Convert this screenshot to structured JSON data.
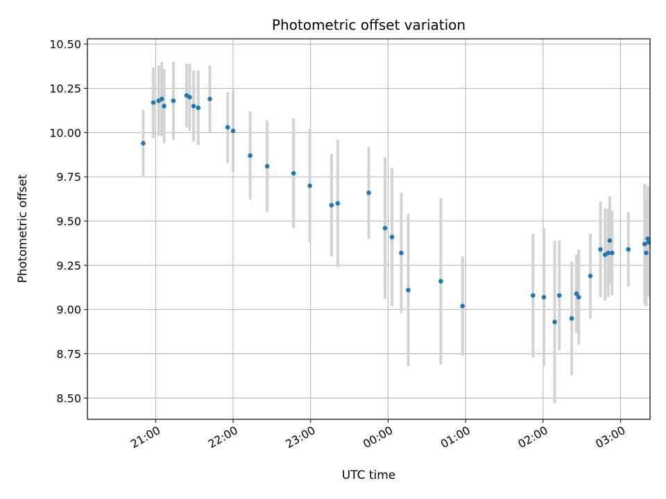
{
  "chart_data": {
    "type": "scatter",
    "title": "Photometric offset variation",
    "xlabel": "UTC time",
    "ylabel": "Photometric offset",
    "grid": true,
    "xlim": [
      -0.88,
      6.38
    ],
    "ylim": [
      8.38,
      10.53
    ],
    "xticks": [
      {
        "value": 0,
        "label": "21:00"
      },
      {
        "value": 1,
        "label": "22:00"
      },
      {
        "value": 2,
        "label": "23:00"
      },
      {
        "value": 3,
        "label": "00:00"
      },
      {
        "value": 4,
        "label": "01:00"
      },
      {
        "value": 5,
        "label": "02:00"
      },
      {
        "value": 6,
        "label": "03:00"
      }
    ],
    "yticks": [
      {
        "value": 8.5,
        "label": "8.50"
      },
      {
        "value": 8.75,
        "label": "8.75"
      },
      {
        "value": 9.0,
        "label": "9.00"
      },
      {
        "value": 9.25,
        "label": "9.25"
      },
      {
        "value": 9.5,
        "label": "9.50"
      },
      {
        "value": 9.75,
        "label": "9.75"
      },
      {
        "value": 10.0,
        "label": "10.00"
      },
      {
        "value": 10.25,
        "label": "10.25"
      },
      {
        "value": 10.5,
        "label": "10.50"
      }
    ],
    "colors": {
      "point": "#1f77b4",
      "errorbar": "#d3d3d3",
      "grid": "#b0b0b0"
    },
    "series": [
      {
        "x": [
          -0.16,
          -0.03,
          0.04,
          0.08,
          0.11,
          0.23,
          0.4,
          0.44,
          0.49,
          0.55,
          0.7,
          0.93,
          1.0,
          1.22,
          1.44,
          1.78,
          1.99,
          2.27,
          2.35,
          2.75,
          2.96,
          3.05,
          3.17,
          3.26,
          3.68,
          3.96,
          4.87,
          5.01,
          5.15,
          5.21,
          5.37,
          5.43,
          5.46,
          5.61,
          5.74,
          5.8,
          5.84,
          5.86,
          5.89,
          6.1,
          6.31,
          6.33,
          6.35,
          6.36
        ],
        "y": [
          9.94,
          10.17,
          10.18,
          10.19,
          10.15,
          10.18,
          10.21,
          10.2,
          10.15,
          10.14,
          10.19,
          10.03,
          10.01,
          9.87,
          9.81,
          9.77,
          9.7,
          9.59,
          9.6,
          9.66,
          9.46,
          9.41,
          9.32,
          9.11,
          9.16,
          9.02,
          9.08,
          9.07,
          8.93,
          9.08,
          8.95,
          9.09,
          9.07,
          9.19,
          9.34,
          9.31,
          9.32,
          9.39,
          9.32,
          9.34,
          9.37,
          9.32,
          9.4,
          9.38
        ],
        "yerr": [
          0.19,
          0.2,
          0.2,
          0.21,
          0.21,
          0.22,
          0.18,
          0.19,
          0.2,
          0.21,
          0.19,
          0.2,
          0.23,
          0.25,
          0.26,
          0.31,
          0.32,
          0.29,
          0.36,
          0.26,
          0.4,
          0.39,
          0.34,
          0.43,
          0.47,
          0.28,
          0.35,
          0.39,
          0.46,
          0.31,
          0.32,
          0.22,
          0.27,
          0.24,
          0.27,
          0.26,
          0.25,
          0.25,
          0.24,
          0.21,
          0.34,
          0.3,
          0.3,
          0.31
        ]
      }
    ]
  }
}
